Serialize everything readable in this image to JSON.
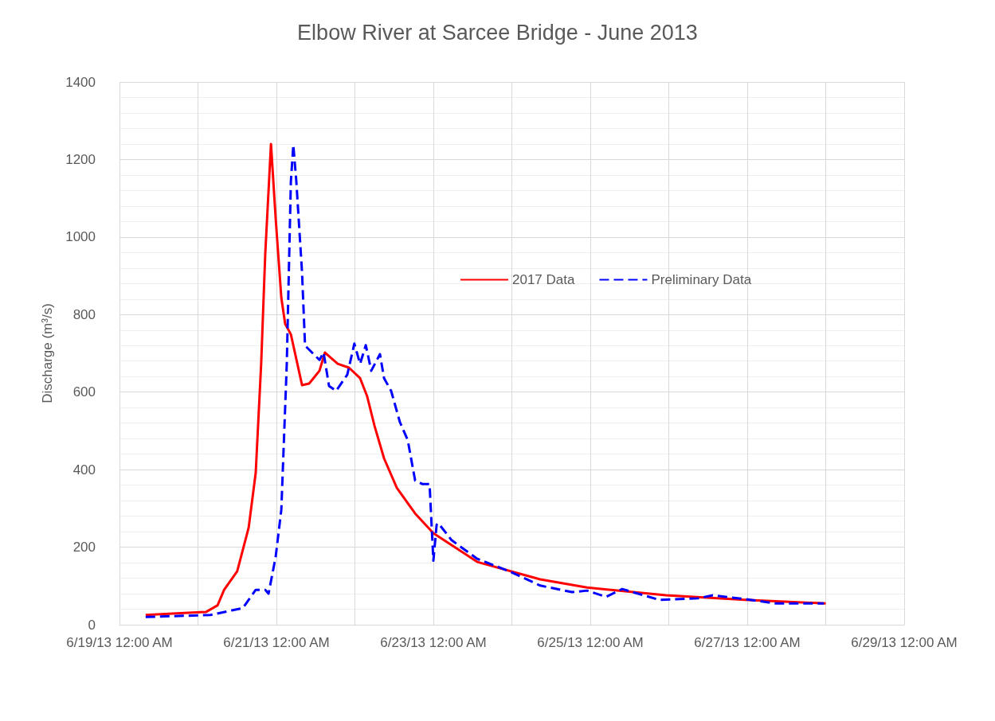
{
  "chart_data": {
    "type": "line",
    "title": "Elbow River at Sarcee Bridge - June 2013",
    "ylabel": "Discharge (m³/s)",
    "xlim": [
      "2013-06-19",
      "2013-06-29"
    ],
    "xticks": [
      {
        "value": "2013-06-19",
        "label": "6/19/13 12:00 AM"
      },
      {
        "value": "2013-06-20",
        "label": null
      },
      {
        "value": "2013-06-21",
        "label": "6/21/13 12:00 AM"
      },
      {
        "value": "2013-06-22",
        "label": null
      },
      {
        "value": "2013-06-23",
        "label": "6/23/13 12:00 AM"
      },
      {
        "value": "2013-06-24",
        "label": null
      },
      {
        "value": "2013-06-25",
        "label": "6/25/13 12:00 AM"
      },
      {
        "value": "2013-06-26",
        "label": null
      },
      {
        "value": "2013-06-27",
        "label": "6/27/13 12:00 AM"
      },
      {
        "value": "2013-06-28",
        "label": null
      },
      {
        "value": "2013-06-29",
        "label": "6/29/13 12:00 AM"
      }
    ],
    "ylim": [
      0,
      1400
    ],
    "yticks": [
      0,
      200,
      400,
      600,
      800,
      1000,
      1200,
      1400
    ],
    "grid": true,
    "legend": "center",
    "marker": "none",
    "series": [
      {
        "name": "2017 Data",
        "color": "#ff0000",
        "line_style": "solid",
        "x": [
          "2013-06-19T08:00",
          "2013-06-20T02:30",
          "2013-06-20T06:00",
          "2013-06-20T08:00",
          "2013-06-20T12:00",
          "2013-06-20T15:30",
          "2013-06-20T17:40",
          "2013-06-20T19:20",
          "2013-06-20T20:35",
          "2013-06-20T22:20",
          "2013-06-20T23:45",
          "2013-06-21T01:30",
          "2013-06-21T02:40",
          "2013-06-21T04:25",
          "2013-06-21T07:50",
          "2013-06-21T10:00",
          "2013-06-21T13:10",
          "2013-06-21T14:50",
          "2013-06-21T18:45",
          "2013-06-21T22:10",
          "2013-06-22T01:35",
          "2013-06-22T03:45",
          "2013-06-22T06:00",
          "2013-06-22T08:55",
          "2013-06-22T12:50",
          "2013-06-22T18:25",
          "2013-06-23T00:00",
          "2013-06-23T13:25",
          "2013-06-24T08:40",
          "2013-06-24T23:00",
          "2013-06-25T23:10",
          "2013-06-26T23:15",
          "2013-06-28T00:00"
        ],
        "values": [
          25,
          33,
          50,
          90,
          138,
          250,
          392,
          673,
          957,
          1240,
          1050,
          843,
          776,
          749,
          618,
          622,
          655,
          702,
          673,
          663,
          636,
          589,
          513,
          429,
          353,
          287,
          236,
          162,
          117,
          96,
          76,
          64,
          55
        ]
      },
      {
        "name": "Preliminary Data",
        "color": "#0000ff",
        "line_style": "dashed",
        "x": [
          "2013-06-19T08:00",
          "2013-06-20T03:50",
          "2013-06-20T10:20",
          "2013-06-20T13:45",
          "2013-06-20T17:40",
          "2013-06-20T20:35",
          "2013-06-20T21:35",
          "2013-06-20T23:45",
          "2013-06-21T01:30",
          "2013-06-21T03:10",
          "2013-06-21T03:40",
          "2013-06-21T04:25",
          "2013-06-21T05:10",
          "2013-06-21T06:05",
          "2013-06-21T07:50",
          "2013-06-21T08:45",
          "2013-06-21T13:10",
          "2013-06-21T14:25",
          "2013-06-21T16:05",
          "2013-06-21T18:15",
          "2013-06-21T21:40",
          "2013-06-21T23:50",
          "2013-06-22T01:35",
          "2013-06-22T03:20",
          "2013-06-22T05:00",
          "2013-06-22T07:40",
          "2013-06-22T08:55",
          "2013-06-22T11:05",
          "2013-06-22T13:45",
          "2013-06-22T16:10",
          "2013-06-22T18:25",
          "2013-06-22T20:35",
          "2013-06-22T22:50",
          "2013-06-23T00:00",
          "2013-06-23T01:00",
          "2013-06-23T01:30",
          "2013-06-23T05:35",
          "2013-06-23T13:25",
          "2013-06-23T23:10",
          "2013-06-24T08:40",
          "2013-06-24T18:25",
          "2013-06-24T23:00",
          "2013-06-25T04:50",
          "2013-06-25T09:45",
          "2013-06-25T21:10",
          "2013-06-26T08:55",
          "2013-06-26T13:30",
          "2013-06-26T23:15",
          "2013-06-27T08:45",
          "2013-06-27T23:25"
        ],
        "values": [
          20,
          25,
          37,
          43,
          90,
          90,
          80,
          174,
          297,
          673,
          862,
          1143,
          1238,
          1143,
          909,
          720,
          683,
          702,
          616,
          603,
          645,
          725,
          673,
          721,
          655,
          698,
          636,
          603,
          523,
          476,
          372,
          363,
          363,
          165,
          258,
          262,
          218,
          170,
          138,
          101,
          84,
          88,
          72,
          92,
          64,
          68,
          76,
          66,
          55,
          55
        ]
      }
    ]
  }
}
